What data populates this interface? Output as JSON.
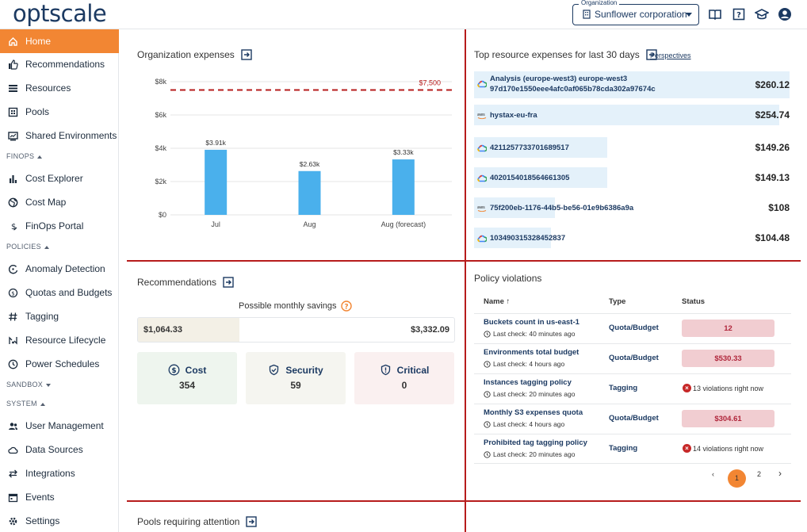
{
  "header": {
    "logo": "optscale",
    "org_legend": "Organization",
    "org_value": "Sunflower corporation"
  },
  "sidebar": {
    "items": [
      {
        "label": "Home",
        "icon": "home-icon"
      },
      {
        "label": "Recommendations",
        "icon": "thumbs-up-icon"
      },
      {
        "label": "Resources",
        "icon": "list-icon"
      },
      {
        "label": "Pools",
        "icon": "pools-icon"
      },
      {
        "label": "Shared Environments",
        "icon": "environment-icon"
      },
      {
        "label": "Cost Explorer",
        "icon": "bar-chart-icon"
      },
      {
        "label": "Cost Map",
        "icon": "globe-icon"
      },
      {
        "label": "FinOps Portal",
        "icon": "dollar-icon"
      },
      {
        "label": "Anomaly Detection",
        "icon": "anomaly-icon"
      },
      {
        "label": "Quotas and Budgets",
        "icon": "money-icon"
      },
      {
        "label": "Tagging",
        "icon": "hash-icon"
      },
      {
        "label": "Resource Lifecycle",
        "icon": "lifecycle-icon"
      },
      {
        "label": "Power Schedules",
        "icon": "clock-icon"
      },
      {
        "label": "User Management",
        "icon": "users-icon"
      },
      {
        "label": "Data Sources",
        "icon": "cloud-icon"
      },
      {
        "label": "Integrations",
        "icon": "arrows-icon"
      },
      {
        "label": "Events",
        "icon": "calendar-icon"
      },
      {
        "label": "Settings",
        "icon": "gear-icon"
      }
    ],
    "sections": {
      "finops": "FINOPS",
      "policies": "POLICIES",
      "sandbox": "SANDBOX",
      "system": "SYSTEM"
    }
  },
  "org_expenses": {
    "title": "Organization expenses",
    "chart_data": {
      "type": "bar",
      "categories": [
        "Jul",
        "Aug",
        "Aug (forecast)"
      ],
      "values": [
        3910,
        2630,
        3330
      ],
      "data_labels": [
        "$3.91k",
        "$2.63k",
        "$3.33k"
      ],
      "y_ticks": [
        "$0",
        "$2k",
        "$4k",
        "$6k",
        "$8k"
      ],
      "ylim": [
        0,
        8000
      ],
      "threshold": 7500,
      "threshold_label": "$7,500",
      "color": "#4ab0ec",
      "threshold_color": "#b71c1c"
    }
  },
  "top_expenses": {
    "title": "Top resource expenses for last 30 days",
    "perspectives": "Perspectives",
    "rows": [
      {
        "name": "Analysis (europe-west3) europe-west3",
        "name2": "97d170e1550eee4afc0af065b78cda302a97674c",
        "value": "$260.12",
        "provider": "gcp",
        "amount": 260.12
      },
      {
        "name": "hystax-eu-fra",
        "name2": "",
        "value": "$254.74",
        "provider": "aws",
        "amount": 254.74
      },
      {
        "name": "4211257733701689517",
        "name2": "",
        "value": "$149.26",
        "provider": "gcp",
        "amount": 149.26
      },
      {
        "name": "4020154018564661305",
        "name2": "",
        "value": "$149.13",
        "provider": "gcp",
        "amount": 149.13
      },
      {
        "name": "75f200eb-1176-44b5-be56-01e9b6386a9a",
        "name2": "",
        "value": "$108",
        "provider": "aws",
        "amount": 108
      },
      {
        "name": "103490315328452837",
        "name2": "",
        "value": "$104.48",
        "provider": "gcp",
        "amount": 104.48
      }
    ]
  },
  "recommendations": {
    "title": "Recommendations",
    "savings_label": "Possible monthly savings",
    "savings_current": "$1,064.33",
    "savings_total": "$3,332.09",
    "savings_fraction": 0.32,
    "cards": [
      {
        "label": "Cost",
        "count": "354",
        "icon": "dollar-circle-icon",
        "bg": "#eef5ee"
      },
      {
        "label": "Security",
        "count": "59",
        "icon": "shield-check-icon",
        "bg": "#f5f5f0"
      },
      {
        "label": "Critical",
        "count": "0",
        "icon": "shield-alert-icon",
        "bg": "#faf0f0"
      }
    ]
  },
  "policy_violations": {
    "title": "Policy violations",
    "columns": {
      "name": "Name",
      "type": "Type",
      "status": "Status"
    },
    "rows": [
      {
        "name": "Buckets count in us-east-1",
        "check": "Last check: 40 minutes ago",
        "type": "Quota/Budget",
        "badge": "12",
        "violations": ""
      },
      {
        "name": "Environments total budget",
        "check": "Last check: 4 hours ago",
        "type": "Quota/Budget",
        "badge": "$530.33",
        "violations": ""
      },
      {
        "name": "Instances tagging policy",
        "check": "Last check: 20 minutes ago",
        "type": "Tagging",
        "badge": "",
        "violations": "13 violations right now"
      },
      {
        "name": "Monthly S3 expenses quota",
        "check": "Last check: 4 hours ago",
        "type": "Quota/Budget",
        "badge": "$304.61",
        "violations": ""
      },
      {
        "name": "Prohibited tag tagging policy",
        "check": "Last check: 20 minutes ago",
        "type": "Tagging",
        "badge": "",
        "violations": "14 violations right now"
      }
    ],
    "pagination": {
      "current": "1",
      "next": "2",
      "prev_symbol": "‹",
      "next_symbol": "›"
    }
  },
  "pools_attention": {
    "title": "Pools requiring attention"
  },
  "colors": {
    "accent": "#f28633",
    "brand": "#1c3a62",
    "divider": "#b71c1c"
  }
}
